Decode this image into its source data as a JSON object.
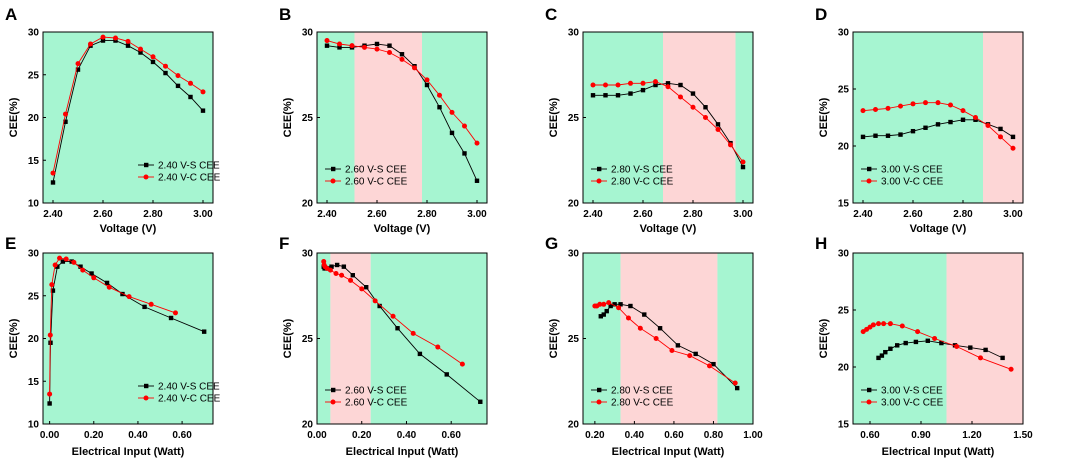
{
  "colors": {
    "green": "#a6f5d1",
    "pink": "#fdd6d6",
    "vs": "#000000",
    "vc": "#ff0000"
  },
  "chart_data": [
    {
      "type": "line",
      "panel": "A",
      "xlabel": "Voltage (V)",
      "ylabel": "CEE(%)",
      "xlim": [
        2.36,
        3.04
      ],
      "ylim": [
        10,
        30
      ],
      "xticks": [
        2.4,
        2.6,
        2.8,
        3.0
      ],
      "xtick_labels": [
        "2.40",
        "2.60",
        "2.80",
        "3.00"
      ],
      "yticks": [
        10,
        15,
        20,
        25,
        30
      ],
      "ytick_labels": [
        "10",
        "15",
        "20",
        "25",
        "30"
      ],
      "regions": [
        {
          "from": 2.36,
          "to": 3.04,
          "color": "green"
        }
      ],
      "legend_position": "bottom-right",
      "series": [
        {
          "name": "2.40 V-S CEE",
          "marker": "square",
          "x": [
            2.4,
            2.45,
            2.5,
            2.55,
            2.6,
            2.65,
            2.7,
            2.75,
            2.8,
            2.85,
            2.9,
            2.95,
            3.0
          ],
          "y": [
            12.4,
            19.5,
            25.6,
            28.4,
            29.0,
            29.0,
            28.4,
            27.6,
            26.5,
            25.2,
            23.7,
            22.4,
            20.8
          ]
        },
        {
          "name": "2.40 V-C CEE",
          "marker": "circle",
          "x": [
            2.4,
            2.45,
            2.5,
            2.55,
            2.6,
            2.65,
            2.7,
            2.75,
            2.8,
            2.85,
            2.9,
            2.95,
            3.0
          ],
          "y": [
            13.5,
            20.4,
            26.3,
            28.6,
            29.4,
            29.3,
            28.9,
            28.0,
            27.1,
            26.0,
            24.9,
            24.0,
            23.0
          ]
        }
      ]
    },
    {
      "type": "line",
      "panel": "B",
      "xlabel": "Voltage (V)",
      "ylabel": "CEE(%)",
      "xlim": [
        2.36,
        3.04
      ],
      "ylim": [
        20,
        30
      ],
      "xticks": [
        2.4,
        2.6,
        2.8,
        3.0
      ],
      "xtick_labels": [
        "2.40",
        "2.60",
        "2.80",
        "3.00"
      ],
      "yticks": [
        20,
        25,
        30
      ],
      "ytick_labels": [
        "20",
        "25",
        "30"
      ],
      "regions": [
        {
          "from": 2.36,
          "to": 2.51,
          "color": "green"
        },
        {
          "from": 2.51,
          "to": 2.78,
          "color": "pink"
        },
        {
          "from": 2.78,
          "to": 3.04,
          "color": "green"
        }
      ],
      "legend_position": "bottom-left",
      "series": [
        {
          "name": "2.60 V-S CEE",
          "marker": "square",
          "x": [
            2.4,
            2.45,
            2.5,
            2.55,
            2.6,
            2.65,
            2.7,
            2.75,
            2.8,
            2.85,
            2.9,
            2.95,
            3.0
          ],
          "y": [
            29.2,
            29.1,
            29.1,
            29.2,
            29.3,
            29.2,
            28.7,
            28.0,
            26.9,
            25.6,
            24.1,
            22.9,
            21.3
          ]
        },
        {
          "name": "2.60 V-C CEE",
          "marker": "circle",
          "x": [
            2.4,
            2.45,
            2.5,
            2.55,
            2.6,
            2.65,
            2.7,
            2.75,
            2.8,
            2.85,
            2.9,
            2.95,
            3.0
          ],
          "y": [
            29.5,
            29.3,
            29.2,
            29.1,
            29.0,
            28.8,
            28.4,
            27.9,
            27.2,
            26.3,
            25.3,
            24.5,
            23.5
          ]
        }
      ]
    },
    {
      "type": "line",
      "panel": "C",
      "xlabel": "Voltage (V)",
      "ylabel": "CEE(%)",
      "xlim": [
        2.36,
        3.04
      ],
      "ylim": [
        20,
        30
      ],
      "xticks": [
        2.4,
        2.6,
        2.8,
        3.0
      ],
      "xtick_labels": [
        "2.40",
        "2.60",
        "2.80",
        "3.00"
      ],
      "yticks": [
        20,
        25,
        30
      ],
      "ytick_labels": [
        "20",
        "25",
        "30"
      ],
      "regions": [
        {
          "from": 2.36,
          "to": 2.68,
          "color": "green"
        },
        {
          "from": 2.68,
          "to": 2.97,
          "color": "pink"
        },
        {
          "from": 2.97,
          "to": 3.04,
          "color": "green"
        }
      ],
      "legend_position": "bottom-left",
      "series": [
        {
          "name": "2.80 V-S CEE",
          "marker": "square",
          "x": [
            2.4,
            2.45,
            2.5,
            2.55,
            2.6,
            2.65,
            2.7,
            2.75,
            2.8,
            2.85,
            2.9,
            2.95,
            3.0
          ],
          "y": [
            26.3,
            26.3,
            26.3,
            26.4,
            26.6,
            26.9,
            27.0,
            26.9,
            26.4,
            25.6,
            24.6,
            23.5,
            22.1
          ]
        },
        {
          "name": "2.80 V-C CEE",
          "marker": "circle",
          "x": [
            2.4,
            2.45,
            2.5,
            2.55,
            2.6,
            2.65,
            2.7,
            2.75,
            2.8,
            2.85,
            2.9,
            2.95,
            3.0
          ],
          "y": [
            26.9,
            26.9,
            26.9,
            27.0,
            27.0,
            27.1,
            26.8,
            26.2,
            25.6,
            25.0,
            24.3,
            23.4,
            22.4
          ]
        }
      ]
    },
    {
      "type": "line",
      "panel": "D",
      "xlabel": "Voltage (V)",
      "ylabel": "CEE(%)",
      "xlim": [
        2.36,
        3.04
      ],
      "ylim": [
        15,
        30
      ],
      "xticks": [
        2.4,
        2.6,
        2.8,
        3.0
      ],
      "xtick_labels": [
        "2.40",
        "2.60",
        "2.80",
        "3.00"
      ],
      "yticks": [
        15,
        20,
        25,
        30
      ],
      "ytick_labels": [
        "15",
        "20",
        "25",
        "30"
      ],
      "regions": [
        {
          "from": 2.36,
          "to": 2.88,
          "color": "green"
        },
        {
          "from": 2.88,
          "to": 3.04,
          "color": "pink"
        }
      ],
      "legend_position": "bottom-left",
      "series": [
        {
          "name": "3.00 V-S CEE",
          "marker": "square",
          "x": [
            2.4,
            2.45,
            2.5,
            2.55,
            2.6,
            2.65,
            2.7,
            2.75,
            2.8,
            2.85,
            2.9,
            2.95,
            3.0
          ],
          "y": [
            20.8,
            20.9,
            20.9,
            21.0,
            21.3,
            21.6,
            21.9,
            22.1,
            22.3,
            22.3,
            21.9,
            21.5,
            20.8
          ]
        },
        {
          "name": "3.00 V-C CEE",
          "marker": "circle",
          "x": [
            2.4,
            2.45,
            2.5,
            2.55,
            2.6,
            2.65,
            2.7,
            2.75,
            2.8,
            2.85,
            2.9,
            2.95,
            3.0
          ],
          "y": [
            23.1,
            23.2,
            23.3,
            23.5,
            23.7,
            23.8,
            23.8,
            23.6,
            23.1,
            22.5,
            21.8,
            20.8,
            19.8
          ]
        }
      ]
    },
    {
      "type": "line",
      "panel": "E",
      "xlabel": "Electrical Input (Watt)",
      "ylabel": "CEE(%)",
      "xlim": [
        -0.03,
        0.74
      ],
      "ylim": [
        10,
        30
      ],
      "xticks": [
        0.0,
        0.2,
        0.4,
        0.6
      ],
      "xtick_labels": [
        "0.00",
        "0.20",
        "0.40",
        "0.60"
      ],
      "yticks": [
        10,
        15,
        20,
        25,
        30
      ],
      "ytick_labels": [
        "10",
        "15",
        "20",
        "25",
        "30"
      ],
      "regions": [
        {
          "from": -0.03,
          "to": 0.74,
          "color": "green"
        }
      ],
      "legend_position": "bottom-right",
      "series": [
        {
          "name": "2.40 V-S CEE",
          "marker": "square",
          "x": [
            0.0,
            0.004,
            0.015,
            0.035,
            0.06,
            0.1,
            0.14,
            0.19,
            0.26,
            0.33,
            0.43,
            0.55,
            0.7
          ],
          "y": [
            12.4,
            19.5,
            25.6,
            28.4,
            29.0,
            29.0,
            28.4,
            27.6,
            26.5,
            25.2,
            23.7,
            22.4,
            20.8
          ]
        },
        {
          "name": "2.40 V-C CEE",
          "marker": "circle",
          "x": [
            0.0,
            0.003,
            0.01,
            0.025,
            0.045,
            0.075,
            0.11,
            0.15,
            0.2,
            0.27,
            0.36,
            0.46,
            0.57
          ],
          "y": [
            13.5,
            20.4,
            26.3,
            28.6,
            29.4,
            29.3,
            28.9,
            28.0,
            27.1,
            26.0,
            24.9,
            24.0,
            23.0
          ]
        }
      ]
    },
    {
      "type": "line",
      "panel": "F",
      "xlabel": "Electrical Input (Watt)",
      "ylabel": "CEE(%)",
      "xlim": [
        0.0,
        0.76
      ],
      "ylim": [
        20,
        30
      ],
      "xticks": [
        0.0,
        0.2,
        0.4,
        0.6
      ],
      "xtick_labels": [
        "0.00",
        "0.20",
        "0.40",
        "0.60"
      ],
      "yticks": [
        20,
        25,
        30
      ],
      "ytick_labels": [
        "20",
        "25",
        "30"
      ],
      "regions": [
        {
          "from": 0.0,
          "to": 0.06,
          "color": "green"
        },
        {
          "from": 0.06,
          "to": 0.24,
          "color": "pink"
        },
        {
          "from": 0.24,
          "to": 0.76,
          "color": "green"
        }
      ],
      "legend_position": "bottom-left",
      "series": [
        {
          "name": "2.60 V-S CEE",
          "marker": "square",
          "x": [
            0.03,
            0.034,
            0.04,
            0.05,
            0.065,
            0.09,
            0.12,
            0.16,
            0.22,
            0.28,
            0.36,
            0.46,
            0.58,
            0.73
          ],
          "y": [
            29.2,
            29.1,
            29.1,
            29.1,
            29.2,
            29.3,
            29.2,
            28.7,
            28.0,
            26.9,
            25.6,
            24.1,
            22.9,
            21.3
          ]
        },
        {
          "name": "2.60 V-C CEE",
          "marker": "circle",
          "x": [
            0.03,
            0.032,
            0.036,
            0.045,
            0.06,
            0.085,
            0.11,
            0.15,
            0.2,
            0.26,
            0.34,
            0.43,
            0.54,
            0.65
          ],
          "y": [
            29.5,
            29.3,
            29.2,
            29.1,
            29.0,
            28.8,
            28.7,
            28.4,
            27.9,
            27.2,
            26.3,
            25.3,
            24.5,
            23.5
          ]
        }
      ]
    },
    {
      "type": "line",
      "panel": "G",
      "xlabel": "Electrical Input (Watt)",
      "ylabel": "CEE(%)",
      "xlim": [
        0.14,
        1.0
      ],
      "ylim": [
        20,
        30
      ],
      "xticks": [
        0.2,
        0.4,
        0.6,
        0.8,
        1.0
      ],
      "xtick_labels": [
        "0.20",
        "0.40",
        "0.60",
        "0.80",
        "1.00"
      ],
      "yticks": [
        20,
        25,
        30
      ],
      "ytick_labels": [
        "20",
        "25",
        "30"
      ],
      "regions": [
        {
          "from": 0.14,
          "to": 0.33,
          "color": "green"
        },
        {
          "from": 0.33,
          "to": 0.82,
          "color": "pink"
        },
        {
          "from": 0.82,
          "to": 1.0,
          "color": "green"
        }
      ],
      "legend_position": "bottom-left",
      "series": [
        {
          "name": "2.80 V-S CEE",
          "marker": "square",
          "x": [
            0.23,
            0.245,
            0.26,
            0.28,
            0.3,
            0.33,
            0.38,
            0.45,
            0.53,
            0.62,
            0.71,
            0.8,
            0.92
          ],
          "y": [
            26.3,
            26.4,
            26.6,
            26.9,
            27.0,
            27.0,
            26.9,
            26.4,
            25.6,
            24.6,
            24.1,
            23.5,
            22.1
          ]
        },
        {
          "name": "2.80 V-C CEE",
          "marker": "circle",
          "x": [
            0.2,
            0.21,
            0.225,
            0.245,
            0.27,
            0.32,
            0.37,
            0.43,
            0.51,
            0.59,
            0.68,
            0.78,
            0.91
          ],
          "y": [
            26.9,
            26.9,
            27.0,
            27.0,
            27.1,
            26.8,
            26.2,
            25.6,
            25.0,
            24.3,
            24.0,
            23.4,
            22.4
          ]
        }
      ]
    },
    {
      "type": "line",
      "panel": "H",
      "xlabel": "Electrical Input (Watt)",
      "ylabel": "CEE(%)",
      "xlim": [
        0.5,
        1.5
      ],
      "ylim": [
        15,
        30
      ],
      "xticks": [
        0.6,
        0.9,
        1.2,
        1.5
      ],
      "xtick_labels": [
        "0.60",
        "0.90",
        "1.20",
        "1.50"
      ],
      "yticks": [
        15,
        20,
        25,
        30
      ],
      "ytick_labels": [
        "15",
        "20",
        "25",
        "30"
      ],
      "regions": [
        {
          "from": 0.5,
          "to": 1.05,
          "color": "green"
        },
        {
          "from": 1.05,
          "to": 1.5,
          "color": "pink"
        }
      ],
      "legend_position": "bottom-left",
      "series": [
        {
          "name": "3.00 V-S CEE",
          "marker": "square",
          "x": [
            0.65,
            0.67,
            0.69,
            0.72,
            0.76,
            0.81,
            0.87,
            0.94,
            1.02,
            1.1,
            1.19,
            1.28,
            1.38
          ],
          "y": [
            20.8,
            21.0,
            21.3,
            21.6,
            21.9,
            22.1,
            22.2,
            22.3,
            22.1,
            21.9,
            21.7,
            21.5,
            20.8
          ]
        },
        {
          "name": "3.00 V-C CEE",
          "marker": "circle",
          "x": [
            0.56,
            0.58,
            0.6,
            0.62,
            0.65,
            0.68,
            0.72,
            0.79,
            0.88,
            0.98,
            1.11,
            1.25,
            1.43
          ],
          "y": [
            23.1,
            23.3,
            23.5,
            23.7,
            23.8,
            23.8,
            23.8,
            23.6,
            23.1,
            22.5,
            21.8,
            20.8,
            19.8
          ]
        }
      ]
    }
  ]
}
